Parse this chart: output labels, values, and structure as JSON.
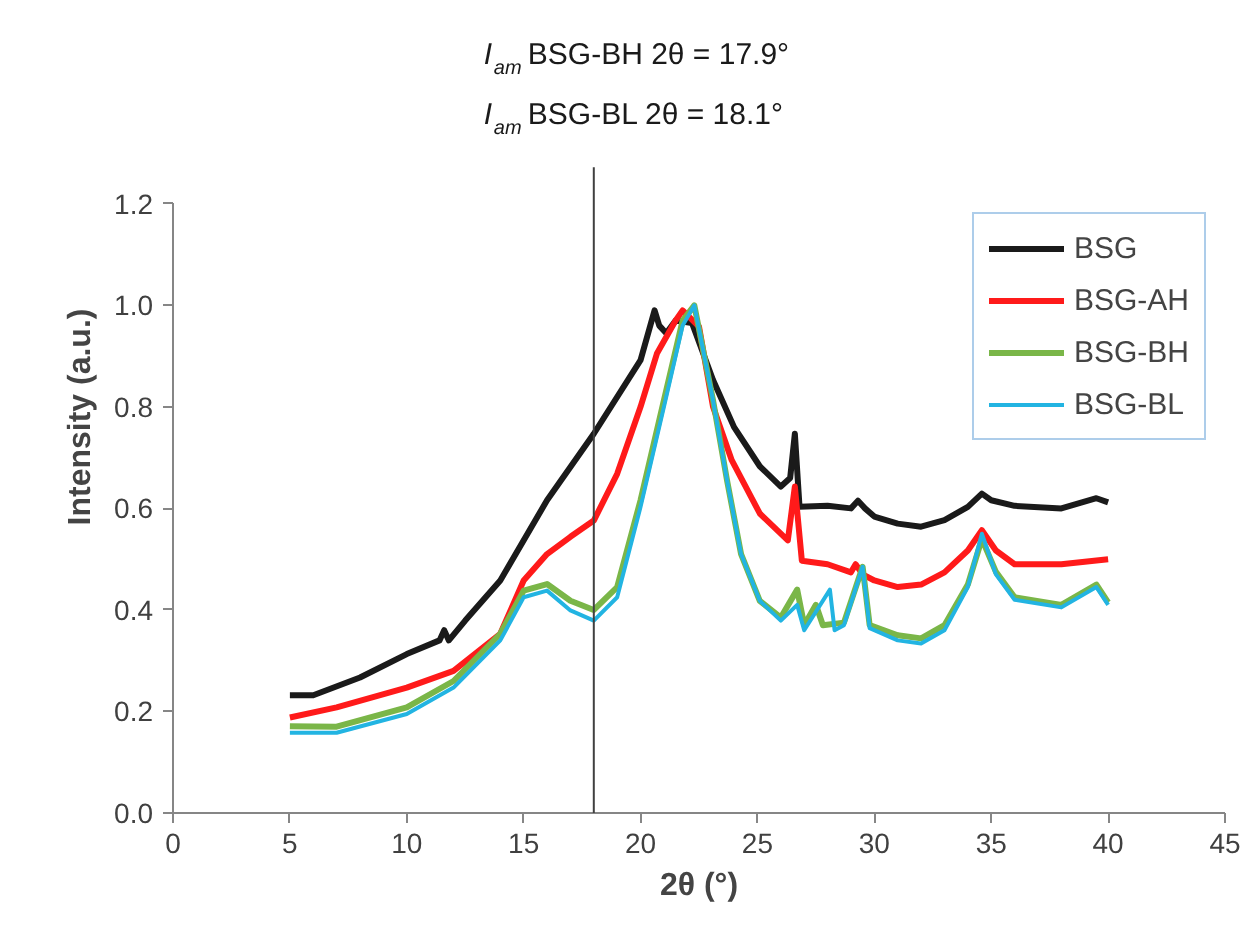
{
  "chart_data": {
    "type": "line",
    "xlabel": "2θ (°)",
    "ylabel": "Intensity (a.u.)",
    "annotations": [
      "I$_{am}$ BSG-BH 2θ = 17.9°",
      "I$_{am}$ BSG-BL 2θ = 18.1°"
    ],
    "ref_lines": [
      {
        "axis": "x",
        "value": 18,
        "color": "#404040"
      }
    ],
    "xlim": [
      0,
      45
    ],
    "ylim": [
      0,
      1.2
    ],
    "xticks": [
      0,
      5,
      10,
      15,
      20,
      25,
      30,
      35,
      40,
      45
    ],
    "yticks": [
      {
        "value": 0,
        "label": "0.0"
      },
      {
        "value": 0.2,
        "label": "0.2"
      },
      {
        "value": 0.4,
        "label": "0.4"
      },
      {
        "value": 0.6,
        "label": "0.6"
      },
      {
        "value": 0.8,
        "label": "0.8"
      },
      {
        "value": 1.0,
        "label": "1.0"
      },
      {
        "value": 1.2,
        "label": "1.2"
      }
    ],
    "grid": false,
    "legend": "top right",
    "marker": "none",
    "line_style": "solid",
    "series": [
      {
        "name": "BSG",
        "color": "#1a1a1a",
        "x": [
          5,
          6,
          8,
          10,
          11.4,
          11.6,
          11.8,
          12.5,
          14,
          16,
          18,
          20,
          20.6,
          20.8,
          21.1,
          21.5,
          22.2,
          23.1,
          24,
          25.1,
          26,
          26.4,
          26.6,
          26.8,
          28,
          29,
          29.3,
          29.6,
          30,
          31,
          32,
          33,
          34,
          34.6,
          35,
          36,
          38,
          39.5,
          40
        ],
        "values": [
          0.232,
          0.232,
          0.267,
          0.313,
          0.34,
          0.36,
          0.34,
          0.379,
          0.458,
          0.616,
          0.747,
          0.892,
          0.99,
          0.96,
          0.945,
          0.97,
          0.965,
          0.853,
          0.76,
          0.683,
          0.643,
          0.66,
          0.747,
          0.603,
          0.605,
          0.6,
          0.615,
          0.6,
          0.584,
          0.57,
          0.564,
          0.577,
          0.603,
          0.629,
          0.616,
          0.605,
          0.6,
          0.62,
          0.612
        ]
      },
      {
        "name": "BSG-AH",
        "color": "#ff1a1a",
        "x": [
          5,
          7,
          10,
          12,
          14,
          15,
          16,
          17,
          18,
          19,
          20,
          20.7,
          21.5,
          21.8,
          22.5,
          23.1,
          23.9,
          25.1,
          26.3,
          26.6,
          26.9,
          28,
          29,
          29.2,
          29.5,
          30,
          31,
          32,
          33,
          34,
          34.6,
          35.2,
          36,
          38,
          40
        ],
        "values": [
          0.188,
          0.208,
          0.247,
          0.28,
          0.353,
          0.458,
          0.51,
          0.544,
          0.576,
          0.668,
          0.8,
          0.905,
          0.97,
          0.99,
          0.958,
          0.8,
          0.695,
          0.59,
          0.537,
          0.643,
          0.497,
          0.49,
          0.474,
          0.49,
          0.47,
          0.458,
          0.445,
          0.45,
          0.474,
          0.517,
          0.557,
          0.517,
          0.49,
          0.49,
          0.5
        ]
      },
      {
        "name": "BSG-BH",
        "color": "#7ab648",
        "x": [
          5,
          7,
          10,
          12,
          14,
          15,
          16,
          17,
          18,
          19,
          20,
          21,
          21.8,
          22.3,
          23.1,
          23.7,
          24.3,
          25.1,
          26,
          26.7,
          27,
          27.5,
          27.8,
          28.7,
          29.5,
          29.8,
          31,
          32,
          33,
          34,
          34.6,
          35.2,
          36,
          38,
          39.5,
          40
        ],
        "values": [
          0.171,
          0.17,
          0.208,
          0.26,
          0.353,
          0.438,
          0.451,
          0.418,
          0.4,
          0.445,
          0.616,
          0.813,
          0.97,
          1.0,
          0.813,
          0.655,
          0.51,
          0.418,
          0.385,
          0.44,
          0.37,
          0.41,
          0.37,
          0.375,
          0.485,
          0.37,
          0.35,
          0.344,
          0.37,
          0.45,
          0.54,
          0.475,
          0.425,
          0.41,
          0.45,
          0.415
        ]
      },
      {
        "name": "BSG-BL",
        "color": "#22b4e2",
        "x": [
          5,
          7,
          10,
          12,
          14,
          15,
          16,
          17,
          18,
          19,
          20,
          21,
          21.8,
          22.3,
          23.1,
          23.7,
          24.3,
          25.1,
          26,
          26.7,
          27,
          28.1,
          28.3,
          28.7,
          29.5,
          29.8,
          31,
          32,
          33,
          34,
          34.6,
          35.2,
          36,
          38,
          39.5,
          40
        ],
        "values": [
          0.158,
          0.158,
          0.195,
          0.247,
          0.34,
          0.425,
          0.438,
          0.399,
          0.379,
          0.425,
          0.603,
          0.8,
          0.96,
          1.0,
          0.813,
          0.655,
          0.51,
          0.418,
          0.379,
          0.41,
          0.36,
          0.44,
          0.36,
          0.37,
          0.485,
          0.364,
          0.34,
          0.334,
          0.36,
          0.445,
          0.55,
          0.47,
          0.42,
          0.405,
          0.445,
          0.41
        ]
      }
    ]
  }
}
